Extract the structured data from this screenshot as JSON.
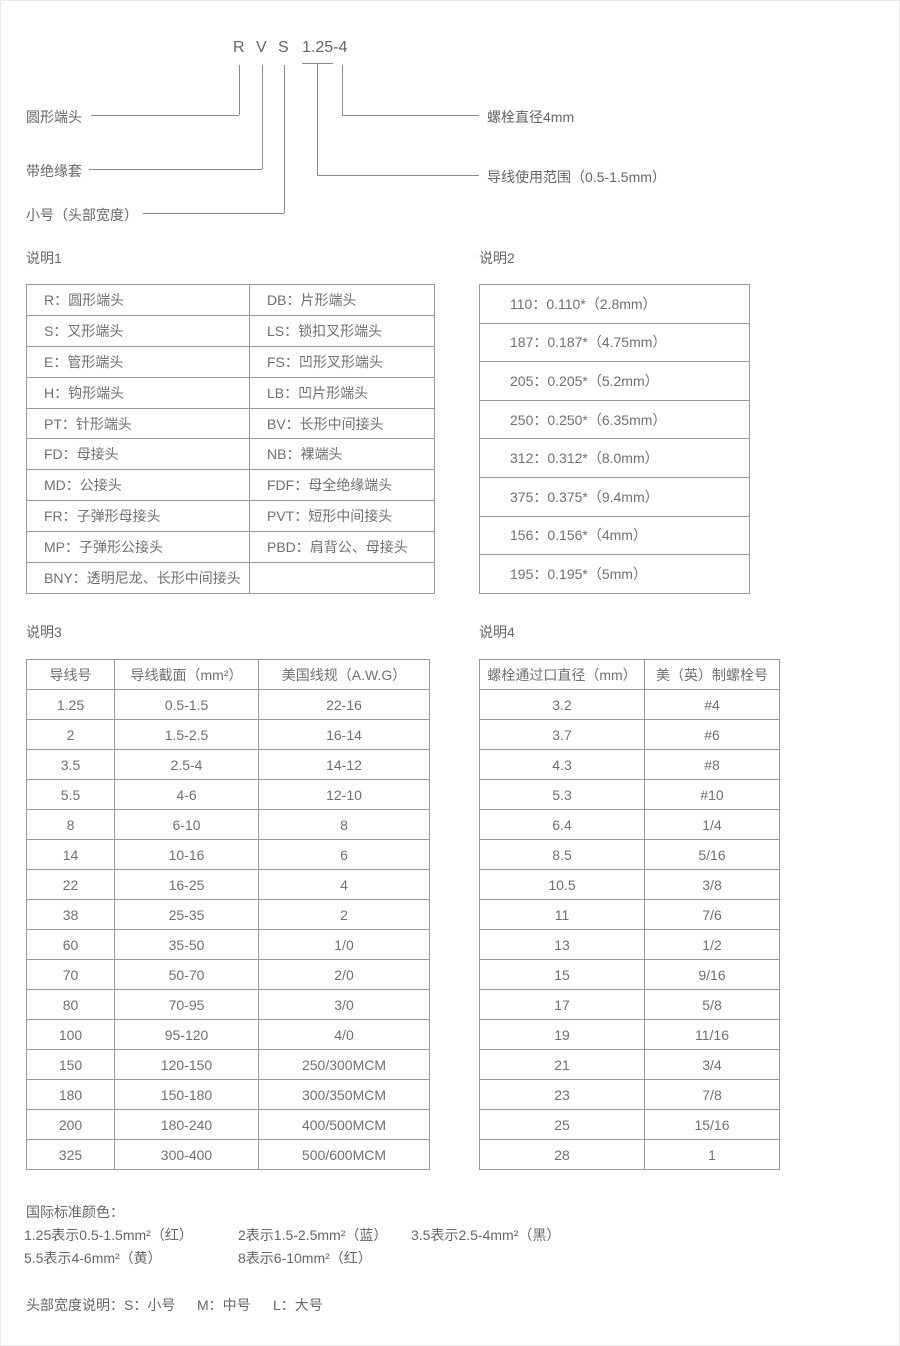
{
  "diagram": {
    "code": {
      "r": "R",
      "v": "V",
      "s": "S",
      "num": "1.25-4"
    },
    "labels": {
      "round_terminal": "圆形端头",
      "insulated_sleeve": "带绝缘套",
      "small_head_width": "小号（头部宽度）",
      "bolt_diameter": "螺栓直径4mm",
      "wire_range": "导线使用范围（0.5-1.5mm）"
    }
  },
  "sections": {
    "s1": {
      "title": "说明1",
      "rows": [
        [
          "R：圆形端头",
          "DB：片形端头"
        ],
        [
          "S：叉形端头",
          "LS：锁扣叉形端头"
        ],
        [
          "E：管形端头",
          "FS：凹形叉形端头"
        ],
        [
          "H：钩形端头",
          "LB：凹片形端头"
        ],
        [
          "PT：针形端头",
          "BV：长形中间接头"
        ],
        [
          "FD：母接头",
          "NB：裸端头"
        ],
        [
          "MD：公接头",
          "FDF：母全绝缘端头"
        ],
        [
          "FR：子弹形母接头",
          "PVT：短形中间接头"
        ],
        [
          "MP：子弹形公接头",
          "PBD：肩背公、母接头"
        ],
        [
          "BNY：透明尼龙、长形中间接头",
          ""
        ]
      ]
    },
    "s2": {
      "title": "说明2",
      "rows": [
        [
          "110：0.110*（2.8mm）"
        ],
        [
          "187：0.187*（4.75mm）"
        ],
        [
          "205：0.205*（5.2mm）"
        ],
        [
          "250：0.250*（6.35mm）"
        ],
        [
          "312：0.312*（8.0mm）"
        ],
        [
          "375：0.375*（9.4mm）"
        ],
        [
          "156：0.156*（4mm）"
        ],
        [
          "195：0.195*（5mm）"
        ]
      ]
    },
    "s3": {
      "title": "说明3",
      "headers": [
        "导线号",
        "导线截面（mm²）",
        "美国线规（A.W.G）"
      ],
      "rows": [
        [
          "1.25",
          "0.5-1.5",
          "22-16"
        ],
        [
          "2",
          "1.5-2.5",
          "16-14"
        ],
        [
          "3.5",
          "2.5-4",
          "14-12"
        ],
        [
          "5.5",
          "4-6",
          "12-10"
        ],
        [
          "8",
          "6-10",
          "8"
        ],
        [
          "14",
          "10-16",
          "6"
        ],
        [
          "22",
          "16-25",
          "4"
        ],
        [
          "38",
          "25-35",
          "2"
        ],
        [
          "60",
          "35-50",
          "1/0"
        ],
        [
          "70",
          "50-70",
          "2/0"
        ],
        [
          "80",
          "70-95",
          "3/0"
        ],
        [
          "100",
          "95-120",
          "4/0"
        ],
        [
          "150",
          "120-150",
          "250/300MCM"
        ],
        [
          "180",
          "150-180",
          "300/350MCM"
        ],
        [
          "200",
          "180-240",
          "400/500MCM"
        ],
        [
          "325",
          "300-400",
          "500/600MCM"
        ]
      ]
    },
    "s4": {
      "title": "说明4",
      "headers": [
        "螺栓通过口直径（mm）",
        "美（英）制螺栓号"
      ],
      "rows": [
        [
          "3.2",
          "#4"
        ],
        [
          "3.7",
          "#6"
        ],
        [
          "4.3",
          "#8"
        ],
        [
          "5.3",
          "#10"
        ],
        [
          "6.4",
          "1/4"
        ],
        [
          "8.5",
          "5/16"
        ],
        [
          "10.5",
          "3/8"
        ],
        [
          "11",
          "7/6"
        ],
        [
          "13",
          "1/2"
        ],
        [
          "15",
          "9/16"
        ],
        [
          "17",
          "5/8"
        ],
        [
          "19",
          "11/16"
        ],
        [
          "21",
          "3/4"
        ],
        [
          "23",
          "7/8"
        ],
        [
          "25",
          "15/16"
        ],
        [
          "28",
          "1"
        ]
      ]
    }
  },
  "footer": {
    "color_title": "国际标准颜色：",
    "color_line1": [
      "1.25表示0.5-1.5mm²（红）",
      "2表示1.5-2.5mm²（蓝）",
      "3.5表示2.5-4mm²（黑）"
    ],
    "color_line2": [
      "5.5表示4-6mm²（黄）",
      "8表示6-10mm²（红）"
    ],
    "head_width_note": [
      "头部宽度说明：S：小号",
      "M：中号",
      "L：大号"
    ]
  },
  "colors": {
    "text": "#707070",
    "border": "#999999",
    "line": "#8a8a8a"
  }
}
